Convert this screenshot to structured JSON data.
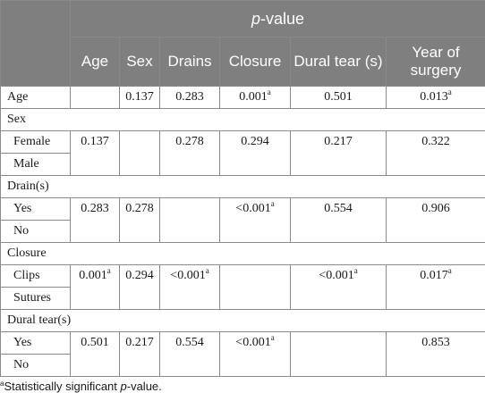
{
  "header": {
    "p_italic": "p",
    "p_rest": "-value",
    "columns": [
      "Age",
      "Sex",
      "Drains",
      "Closure",
      "Dural tear (s)",
      "Year of surgery"
    ]
  },
  "sig_marker": "a",
  "rows": {
    "age": {
      "label": "Age",
      "sex": "0.137",
      "drains": "0.283",
      "closure": "0.001",
      "dural": "0.501",
      "year": "0.013"
    },
    "sex_section": "Sex",
    "female": {
      "label": "Female",
      "age": "0.137",
      "drains": "0.278",
      "closure": "0.294",
      "dural": "0.217",
      "year": "0.322"
    },
    "male": {
      "label": "Male"
    },
    "drain_section": "Drain(s)",
    "drain_yes": {
      "label": "Yes",
      "age": "0.283",
      "sex": "0.278",
      "closure": "<0.001",
      "dural": "0.554",
      "year": "0.906"
    },
    "drain_no": {
      "label": "No"
    },
    "closure_section": "Closure",
    "clips": {
      "label": "Clips",
      "age": "0.001",
      "sex": "0.294",
      "drains": "<0.001",
      "dural": "<0.001",
      "year": "0.017"
    },
    "sutures": {
      "label": "Sutures"
    },
    "dural_section": "Dural tear(s)",
    "dural_yes": {
      "label": "Yes",
      "age": "0.501",
      "sex": "0.217",
      "drains": "0.554",
      "closure": "<0.001",
      "year": "0.853"
    },
    "dural_no": {
      "label": "No"
    }
  },
  "footnote": {
    "marker": "a",
    "text_before": "Statistically significant ",
    "italic": "p",
    "text_after": "-value."
  }
}
